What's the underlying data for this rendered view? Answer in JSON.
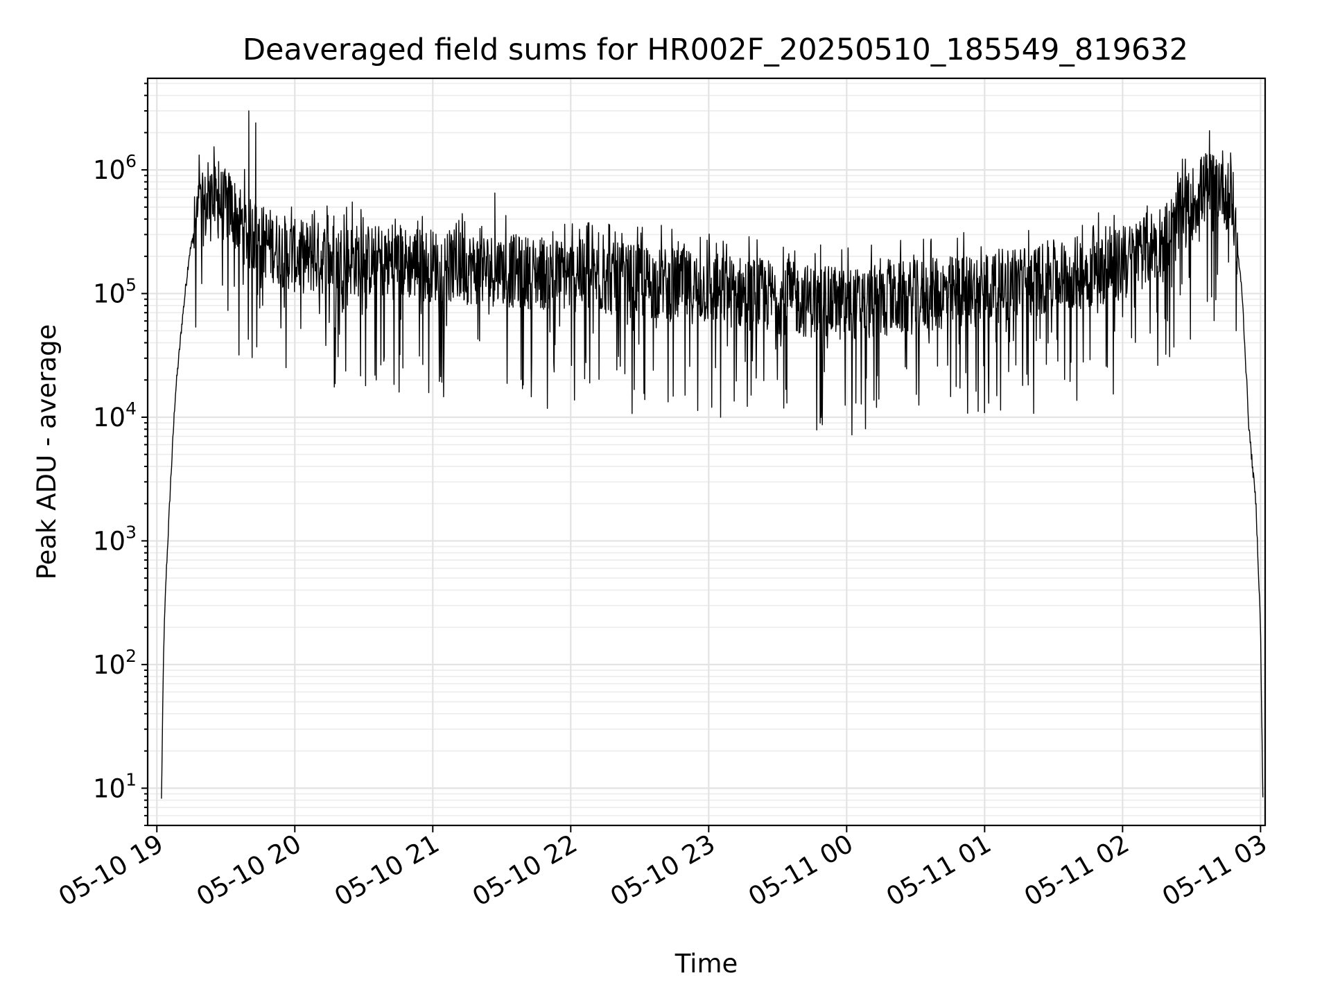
{
  "chart_data": {
    "type": "line",
    "title": "Deaveraged field sums for HR002F_20250510_185549_819632",
    "xlabel": "Time",
    "ylabel": "Peak ADU - average",
    "yscale": "log",
    "grid": true,
    "xlim": [
      "2025-05-10 18:56",
      "2025-05-11 03:02"
    ],
    "ylim": [
      5,
      5500000
    ],
    "x_ticks": [
      {
        "at": "2025-05-10 19:00",
        "label": "05-10 19"
      },
      {
        "at": "2025-05-10 20:00",
        "label": "05-10 20"
      },
      {
        "at": "2025-05-10 21:00",
        "label": "05-10 21"
      },
      {
        "at": "2025-05-10 22:00",
        "label": "05-10 22"
      },
      {
        "at": "2025-05-10 23:00",
        "label": "05-10 23"
      },
      {
        "at": "2025-05-11 00:00",
        "label": "05-11 00"
      },
      {
        "at": "2025-05-11 01:00",
        "label": "05-11 01"
      },
      {
        "at": "2025-05-11 02:00",
        "label": "05-11 02"
      },
      {
        "at": "2025-05-11 03:00",
        "label": "05-11 03"
      }
    ],
    "y_ticks": [
      {
        "value": 10,
        "base": "10",
        "exp": "1"
      },
      {
        "value": 100,
        "base": "10",
        "exp": "2"
      },
      {
        "value": 1000,
        "base": "10",
        "exp": "3"
      },
      {
        "value": 10000,
        "base": "10",
        "exp": "4"
      },
      {
        "value": 100000,
        "base": "10",
        "exp": "5"
      },
      {
        "value": 1000000,
        "base": "10",
        "exp": "6"
      }
    ],
    "series_color": "#000000",
    "series": [
      {
        "envelope": [
          [
            "2025-05-10 19:02",
            8
          ],
          [
            "2025-05-10 19:03",
            150
          ],
          [
            "2025-05-10 19:04",
            500
          ],
          [
            "2025-05-10 19:06",
            3000
          ],
          [
            "2025-05-10 19:08",
            15000
          ],
          [
            "2025-05-10 19:11",
            60000
          ],
          [
            "2025-05-10 19:14",
            200000
          ],
          [
            "2025-05-10 19:18",
            450000
          ],
          [
            "2025-05-10 19:25",
            550000
          ],
          [
            "2025-05-10 19:32",
            500000
          ],
          [
            "2025-05-10 19:40",
            300000
          ],
          [
            "2025-05-10 20:00",
            200000
          ],
          [
            "2025-05-10 21:00",
            170000
          ],
          [
            "2025-05-10 22:00",
            140000
          ],
          [
            "2025-05-10 23:00",
            110000
          ],
          [
            "2025-05-11 00:00",
            80000
          ],
          [
            "2025-05-11 01:00",
            110000
          ],
          [
            "2025-05-11 02:00",
            170000
          ],
          [
            "2025-05-11 02:20",
            300000
          ],
          [
            "2025-05-11 02:35",
            700000
          ],
          [
            "2025-05-11 02:43",
            800000
          ],
          [
            "2025-05-11 02:48",
            500000
          ],
          [
            "2025-05-11 02:52",
            100000
          ],
          [
            "2025-05-11 02:55",
            8000
          ],
          [
            "2025-05-11 02:58",
            2000
          ],
          [
            "2025-05-11 03:00",
            200
          ],
          [
            "2025-05-11 03:01",
            8
          ]
        ],
        "spikes": [
          [
            "2025-05-10 19:40",
            3000000
          ],
          [
            "2025-05-10 19:43",
            2400000
          ],
          [
            "2025-05-10 21:27",
            650000
          ],
          [
            "2025-05-10 20:25",
            550000
          ],
          [
            "2025-05-10 21:39",
            17000
          ],
          [
            "2025-05-10 23:34",
            13000
          ],
          [
            "2025-05-11 00:04",
            13000
          ],
          [
            "2025-05-11 00:14",
            14000
          ],
          [
            "2025-05-10 20:47",
            25000
          ]
        ]
      }
    ]
  }
}
